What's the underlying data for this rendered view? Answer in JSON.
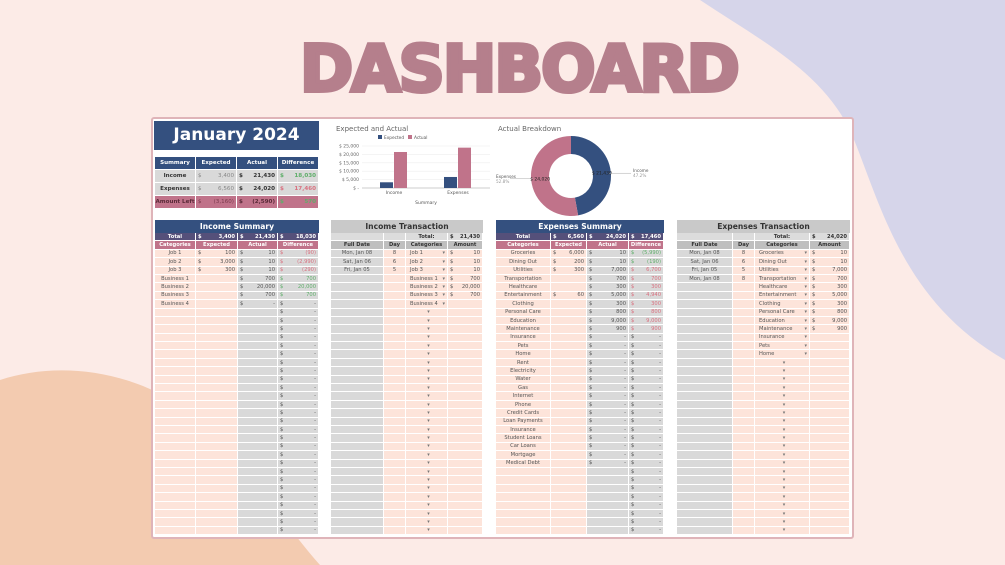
{
  "header": {
    "title": "DASHBOARD"
  },
  "month_title": "January 2024",
  "colors": {
    "navy": "#34507f",
    "mauve": "#c0738a",
    "title": "#b57f8c",
    "peach": "#fde4da",
    "gray": "#d9d9d9",
    "positive": "#5fae6a",
    "negative": "#d9707f"
  },
  "summary": {
    "headers": [
      "Summary",
      "Expected",
      "Actual",
      "Difference"
    ],
    "rows": [
      {
        "label": "Income",
        "expected": "3,400",
        "actual": "21,430",
        "difference": "18,030",
        "tone": "pos"
      },
      {
        "label": "Expenses",
        "expected": "6,560",
        "actual": "24,020",
        "difference": "17,460",
        "tone": "neg"
      },
      {
        "label": "Amount Left",
        "expected": "(3,160)",
        "actual": "(2,590)",
        "difference": "570",
        "tone": "pos"
      }
    ]
  },
  "chart_data": [
    {
      "type": "bar",
      "title": "Expected and Actual",
      "categories": [
        "Income",
        "Expenses"
      ],
      "series": [
        {
          "name": "Expected",
          "color": "#34507f",
          "values": [
            3400,
            6560
          ]
        },
        {
          "name": "Actual",
          "color": "#c0738a",
          "values": [
            21430,
            24020
          ]
        }
      ],
      "xlabel": "Summary",
      "ylabel": "",
      "ylim": [
        0,
        25000
      ],
      "yticks": [
        "$ -",
        "$ 5,000",
        "$ 10,000",
        "$ 15,000",
        "$ 20,000",
        "$ 25,000"
      ],
      "grid": true,
      "legend": "top"
    },
    {
      "type": "pie",
      "title": "Actual Breakdown",
      "donut": true,
      "slices": [
        {
          "label": "Income",
          "value": 21430,
          "value_label": "$ 21,430",
          "percent": "47.2%",
          "color": "#34507f"
        },
        {
          "label": "Expenses",
          "value": 24020,
          "value_label": "$ 24,020",
          "percent": "52.8%",
          "color": "#c0738a"
        }
      ]
    }
  ],
  "income_summary": {
    "title": "Income Summary",
    "total_label": "Total",
    "total": [
      "3,400",
      "21,430",
      "18,030"
    ],
    "headers": [
      "Categories",
      "Expected",
      "Actual",
      "Difference"
    ],
    "rows": [
      {
        "cat": "Job 1",
        "exp": "100",
        "act": "10",
        "diff": "(90)",
        "tone": "neg"
      },
      {
        "cat": "Job 2",
        "exp": "3,000",
        "act": "10",
        "diff": "(2,990)",
        "tone": "neg"
      },
      {
        "cat": "Job 3",
        "exp": "300",
        "act": "10",
        "diff": "(290)",
        "tone": "neg"
      },
      {
        "cat": "Business 1",
        "exp": "",
        "act": "700",
        "diff": "700",
        "tone": "pos"
      },
      {
        "cat": "Business 2",
        "exp": "",
        "act": "20,000",
        "diff": "20,000",
        "tone": "pos"
      },
      {
        "cat": "Business 3",
        "exp": "",
        "act": "700",
        "diff": "700",
        "tone": "pos"
      },
      {
        "cat": "Business 4",
        "exp": "",
        "act": "-",
        "diff": "-",
        "tone": ""
      }
    ],
    "empty_value": "-"
  },
  "income_transaction": {
    "title": "Income Transaction",
    "total_label": "Total:",
    "total": "21,430",
    "headers": [
      "Full Date",
      "Day",
      "Categories",
      "Amount"
    ],
    "rows": [
      {
        "date": "Mon, Jan 08",
        "day": "8",
        "cat": "Job 1",
        "amt": "10"
      },
      {
        "date": "Sat, Jan 06",
        "day": "6",
        "cat": "Job 2",
        "amt": "10"
      },
      {
        "date": "Fri, Jan 05",
        "day": "5",
        "cat": "Job 3",
        "amt": "10"
      },
      {
        "date": "",
        "day": "",
        "cat": "Business 1",
        "amt": "700"
      },
      {
        "date": "",
        "day": "",
        "cat": "Business 2",
        "amt": "20,000"
      },
      {
        "date": "",
        "day": "",
        "cat": "Business 3",
        "amt": "700"
      },
      {
        "date": "",
        "day": "",
        "cat": "Business 4",
        "amt": ""
      }
    ]
  },
  "expenses_summary": {
    "title": "Expenses Summary",
    "total_label": "Total",
    "total": [
      "6,560",
      "24,020",
      "17,460"
    ],
    "headers": [
      "Categories",
      "Expected",
      "Actual",
      "Difference"
    ],
    "rows": [
      {
        "cat": "Groceries",
        "exp": "6,000",
        "act": "10",
        "diff": "(5,990)",
        "tone": "pos"
      },
      {
        "cat": "Dining Out",
        "exp": "200",
        "act": "10",
        "diff": "(190)",
        "tone": "pos"
      },
      {
        "cat": "Utilities",
        "exp": "300",
        "act": "7,000",
        "diff": "6,700",
        "tone": "neg"
      },
      {
        "cat": "Transportation",
        "exp": "",
        "act": "700",
        "diff": "700",
        "tone": "neg"
      },
      {
        "cat": "Healthcare",
        "exp": "",
        "act": "300",
        "diff": "300",
        "tone": "neg"
      },
      {
        "cat": "Entertainment",
        "exp": "60",
        "act": "5,000",
        "diff": "4,940",
        "tone": "neg"
      },
      {
        "cat": "Clothing",
        "exp": "",
        "act": "300",
        "diff": "300",
        "tone": "neg"
      },
      {
        "cat": "Personal Care",
        "exp": "",
        "act": "800",
        "diff": "800",
        "tone": "neg"
      },
      {
        "cat": "Education",
        "exp": "",
        "act": "9,000",
        "diff": "9,000",
        "tone": "neg"
      },
      {
        "cat": "Maintenance",
        "exp": "",
        "act": "900",
        "diff": "900",
        "tone": "neg"
      },
      {
        "cat": "Insurance",
        "exp": "",
        "act": "-",
        "diff": "-",
        "tone": ""
      },
      {
        "cat": "Pets",
        "exp": "",
        "act": "-",
        "diff": "-",
        "tone": ""
      },
      {
        "cat": "Home",
        "exp": "",
        "act": "-",
        "diff": "-",
        "tone": ""
      },
      {
        "cat": "Rent",
        "exp": "",
        "act": "-",
        "diff": "-",
        "tone": ""
      },
      {
        "cat": "Electricity",
        "exp": "",
        "act": "-",
        "diff": "-",
        "tone": ""
      },
      {
        "cat": "Water",
        "exp": "",
        "act": "-",
        "diff": "-",
        "tone": ""
      },
      {
        "cat": "Gas",
        "exp": "",
        "act": "-",
        "diff": "-",
        "tone": ""
      },
      {
        "cat": "Internet",
        "exp": "",
        "act": "-",
        "diff": "-",
        "tone": ""
      },
      {
        "cat": "Phone",
        "exp": "",
        "act": "-",
        "diff": "-",
        "tone": ""
      },
      {
        "cat": "Credit Cards",
        "exp": "",
        "act": "-",
        "diff": "-",
        "tone": ""
      },
      {
        "cat": "Loan Payments",
        "exp": "",
        "act": "-",
        "diff": "-",
        "tone": ""
      },
      {
        "cat": "Insurance",
        "exp": "",
        "act": "-",
        "diff": "-",
        "tone": ""
      },
      {
        "cat": "Student Loans",
        "exp": "",
        "act": "-",
        "diff": "-",
        "tone": ""
      },
      {
        "cat": "Car Loans",
        "exp": "",
        "act": "-",
        "diff": "-",
        "tone": ""
      },
      {
        "cat": "Mortgage",
        "exp": "",
        "act": "-",
        "diff": "-",
        "tone": ""
      },
      {
        "cat": "Medical Debt",
        "exp": "",
        "act": "-",
        "diff": "-",
        "tone": ""
      }
    ],
    "empty_value": "-"
  },
  "expenses_transaction": {
    "title": "Expenses Transaction",
    "total_label": "Total:",
    "total": "24,020",
    "headers": [
      "Full Date",
      "Day",
      "Categories",
      "Amount"
    ],
    "rows": [
      {
        "date": "Mon, Jan 08",
        "day": "8",
        "cat": "Groceries",
        "amt": "10"
      },
      {
        "date": "Sat, Jan 06",
        "day": "6",
        "cat": "Dining Out",
        "amt": "10"
      },
      {
        "date": "Fri, Jan 05",
        "day": "5",
        "cat": "Utilities",
        "amt": "7,000"
      },
      {
        "date": "Mon, Jan 08",
        "day": "8",
        "cat": "Transportation",
        "amt": "700"
      },
      {
        "date": "",
        "day": "",
        "cat": "Healthcare",
        "amt": "300"
      },
      {
        "date": "",
        "day": "",
        "cat": "Entertainment",
        "amt": "5,000"
      },
      {
        "date": "",
        "day": "",
        "cat": "Clothing",
        "amt": "300"
      },
      {
        "date": "",
        "day": "",
        "cat": "Personal Care",
        "amt": "800"
      },
      {
        "date": "",
        "day": "",
        "cat": "Education",
        "amt": "9,000"
      },
      {
        "date": "",
        "day": "",
        "cat": "Maintenance",
        "amt": "900"
      },
      {
        "date": "",
        "day": "",
        "cat": "Insurance",
        "amt": ""
      },
      {
        "date": "",
        "day": "",
        "cat": "Pets",
        "amt": ""
      },
      {
        "date": "",
        "day": "",
        "cat": "Home",
        "amt": ""
      }
    ]
  }
}
